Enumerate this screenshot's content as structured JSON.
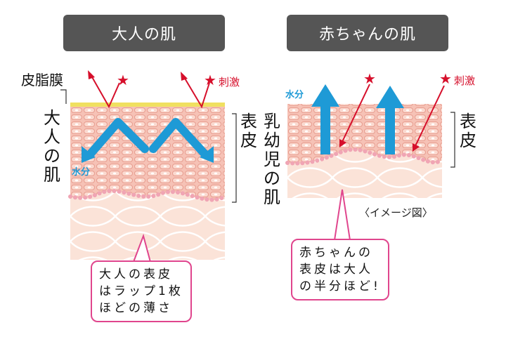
{
  "adult": {
    "title": "大人の肌",
    "side_label": "大人の肌",
    "sebum_label": "皮脂膜",
    "epidermis_label": "表皮",
    "water_label": "水分",
    "stimulus_label": "刺激",
    "callout_lines": [
      "大人の表皮",
      "はラップ1枚",
      "ほどの薄さ"
    ]
  },
  "baby": {
    "title": "赤ちゃんの肌",
    "side_label": "乳幼児の肌",
    "epidermis_label": "表皮",
    "water_label": "水分",
    "stimulus_label": "刺激",
    "image_note": "〈イメージ図〉",
    "callout_lines": [
      "赤ちゃんの",
      "表皮は大人",
      "の半分ほど!"
    ]
  },
  "star_glyph": "★",
  "colors": {
    "badge": "#555555",
    "stimulus": "#d60f2b",
    "water": "#1e9ad6",
    "sebum": "#f0e060",
    "callout_border": "#e0458d",
    "skin_cells": "#f4b4a8",
    "skin_dermis": "#fbe0d4"
  }
}
